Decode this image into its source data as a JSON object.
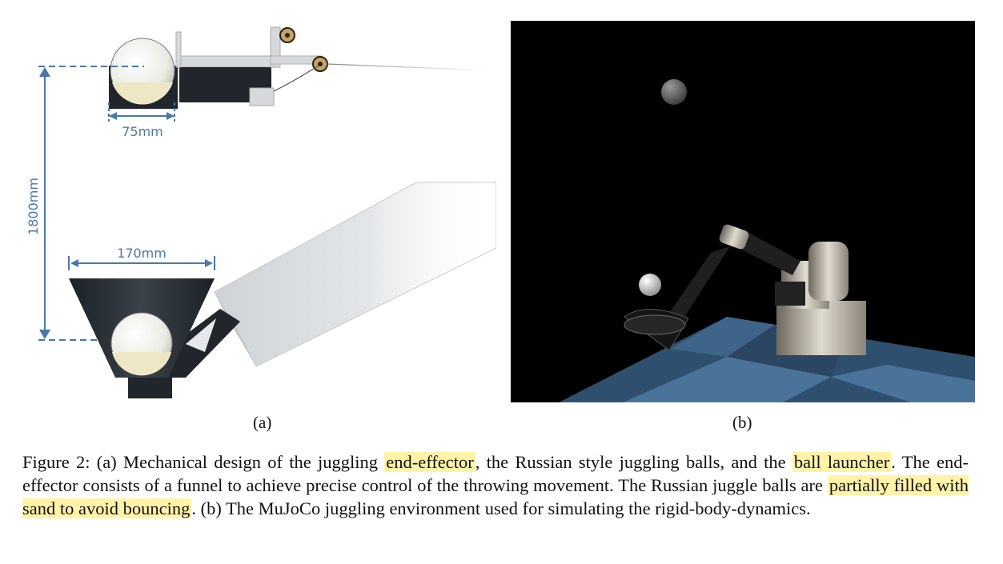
{
  "panel_a": {
    "dim_small": "75mm",
    "dim_large": "170mm",
    "dim_height": "1800mm",
    "label": "(a)"
  },
  "panel_b": {
    "label": "(b)"
  },
  "caption": {
    "prefix": "Figure 2: (a) Mechanical design of the juggling ",
    "hl1": "end-effector",
    "part2": ", the Russian style juggling balls, and the ",
    "hl2": "ball launcher",
    "part3": ". The end-effector consists of a funnel to achieve precise control of the throwing movement. The Russian juggle balls are ",
    "hl3": "partially filled with sand to avoid bouncing",
    "part4": ". (b) The MuJoCo juggling environment used for simulating the rigid-body-dynamics."
  },
  "colors": {
    "dimension": "#4a78a8",
    "highlight": "#fff3a8",
    "floor": "#3e6589"
  }
}
